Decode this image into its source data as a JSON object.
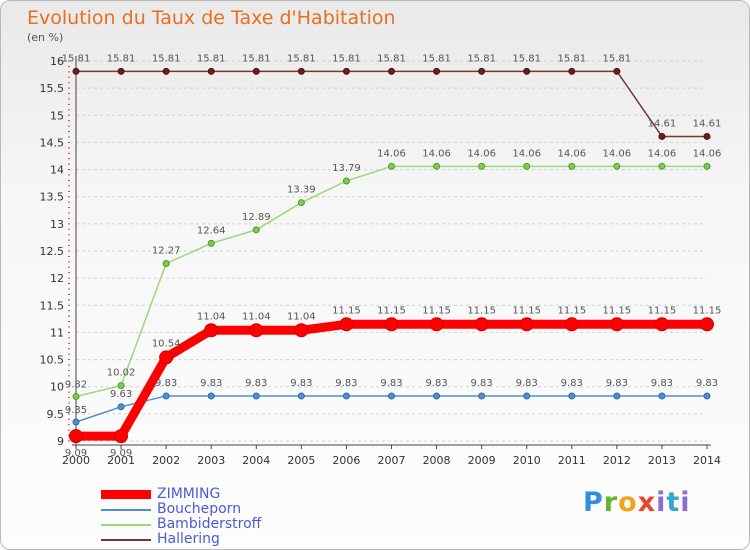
{
  "header": {
    "title": "Evolution du Taux de Taxe d'Habitation",
    "unit": "(en %)"
  },
  "logo": {
    "text": "Proxiti"
  },
  "chart_data": {
    "type": "line",
    "title": "Evolution du Taux de Taxe d'Habitation",
    "subtitle": "(en %)",
    "x": [
      2000,
      2001,
      2002,
      2003,
      2004,
      2005,
      2006,
      2007,
      2008,
      2009,
      2010,
      2011,
      2012,
      2013,
      2014
    ],
    "ylim": [
      9,
      16
    ],
    "yticks": [
      "9",
      "9.5",
      "10",
      "10.5",
      "11",
      "11.5",
      "12",
      "12.5",
      "13",
      "13.5",
      "14",
      "14.5",
      "15",
      "15.5",
      "16"
    ],
    "grid": "horizontal dashed",
    "legend_position": "bottom-left",
    "series": [
      {
        "name": "ZIMMING",
        "color": "#ff0000",
        "values": [
          9.09,
          9.09,
          10.54,
          11.04,
          11.04,
          11.04,
          11.15,
          11.15,
          11.15,
          11.15,
          11.15,
          11.15,
          11.15,
          11.15,
          11.15
        ],
        "labels": [
          "9.09",
          "9.09",
          "10.54",
          "11.04",
          "11.04",
          "11.04",
          "11.15",
          "11.15",
          "11.15",
          "11.15",
          "11.15",
          "11.15",
          "11.15",
          "11.15",
          "11.15"
        ]
      },
      {
        "name": "Boucheporn",
        "color": "#4f8fcf",
        "values": [
          9.35,
          9.63,
          9.83,
          9.83,
          9.83,
          9.83,
          9.83,
          9.83,
          9.83,
          9.83,
          9.83,
          9.83,
          9.83,
          9.83,
          9.83
        ],
        "labels": [
          "9.35",
          "9.63",
          "9.83",
          "9.83",
          "9.83",
          "9.83",
          "9.83",
          "9.83",
          "9.83",
          "9.83",
          "9.83",
          "9.83",
          "9.83",
          "9.83",
          "9.83"
        ]
      },
      {
        "name": "Bambiderstroff",
        "color": "#9ed87a",
        "values": [
          9.82,
          10.02,
          12.27,
          12.64,
          12.89,
          13.39,
          13.79,
          14.06,
          14.06,
          14.06,
          14.06,
          14.06,
          14.06,
          14.06,
          14.06
        ],
        "labels": [
          "9.82",
          "10.02",
          "12.27",
          "12.64",
          "12.89",
          "13.39",
          "13.79",
          "14.06",
          "14.06",
          "14.06",
          "14.06",
          "14.06",
          "14.06",
          "14.06",
          "14.06"
        ]
      },
      {
        "name": "Hallering",
        "color": "#7a3434",
        "values": [
          15.81,
          15.81,
          15.81,
          15.81,
          15.81,
          15.81,
          15.81,
          15.81,
          15.81,
          15.81,
          15.81,
          15.81,
          15.81,
          14.61,
          14.61
        ],
        "labels": [
          "15.81",
          "15.81",
          "15.81",
          "15.81",
          "15.81",
          "15.81",
          "15.81",
          "15.81",
          "15.81",
          "15.81",
          "15.81",
          "15.81",
          "15.81",
          "14.61",
          "14.61"
        ]
      }
    ]
  }
}
